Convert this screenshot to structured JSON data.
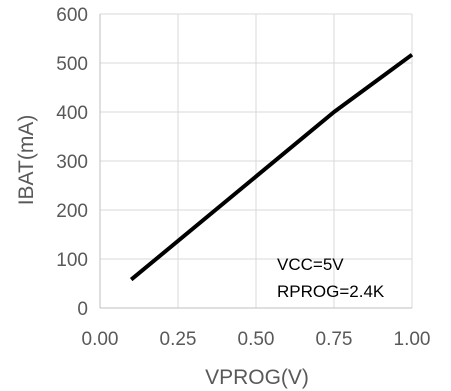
{
  "chart_data": {
    "type": "line",
    "title": "",
    "xlabel": "VPROG(V)",
    "ylabel": "IBAT(mA)",
    "xlim": [
      0.0,
      1.0
    ],
    "ylim": [
      0,
      600
    ],
    "x_ticks": [
      "0.00",
      "0.25",
      "0.50",
      "0.75",
      "1.00"
    ],
    "y_ticks": [
      "0",
      "100",
      "200",
      "300",
      "400",
      "500",
      "600"
    ],
    "grid": true,
    "legend": "none",
    "annotations": [
      "VCC=5V",
      "RPROG=2.4K"
    ],
    "series": [
      {
        "color": "#000000",
        "x": [
          0.1,
          0.75,
          1.0
        ],
        "y": [
          58,
          400,
          517
        ]
      }
    ]
  },
  "colors": {
    "grid": "#d9d9d9",
    "axis": "#bfbfbf",
    "text": "#595959",
    "line": "#000000"
  }
}
